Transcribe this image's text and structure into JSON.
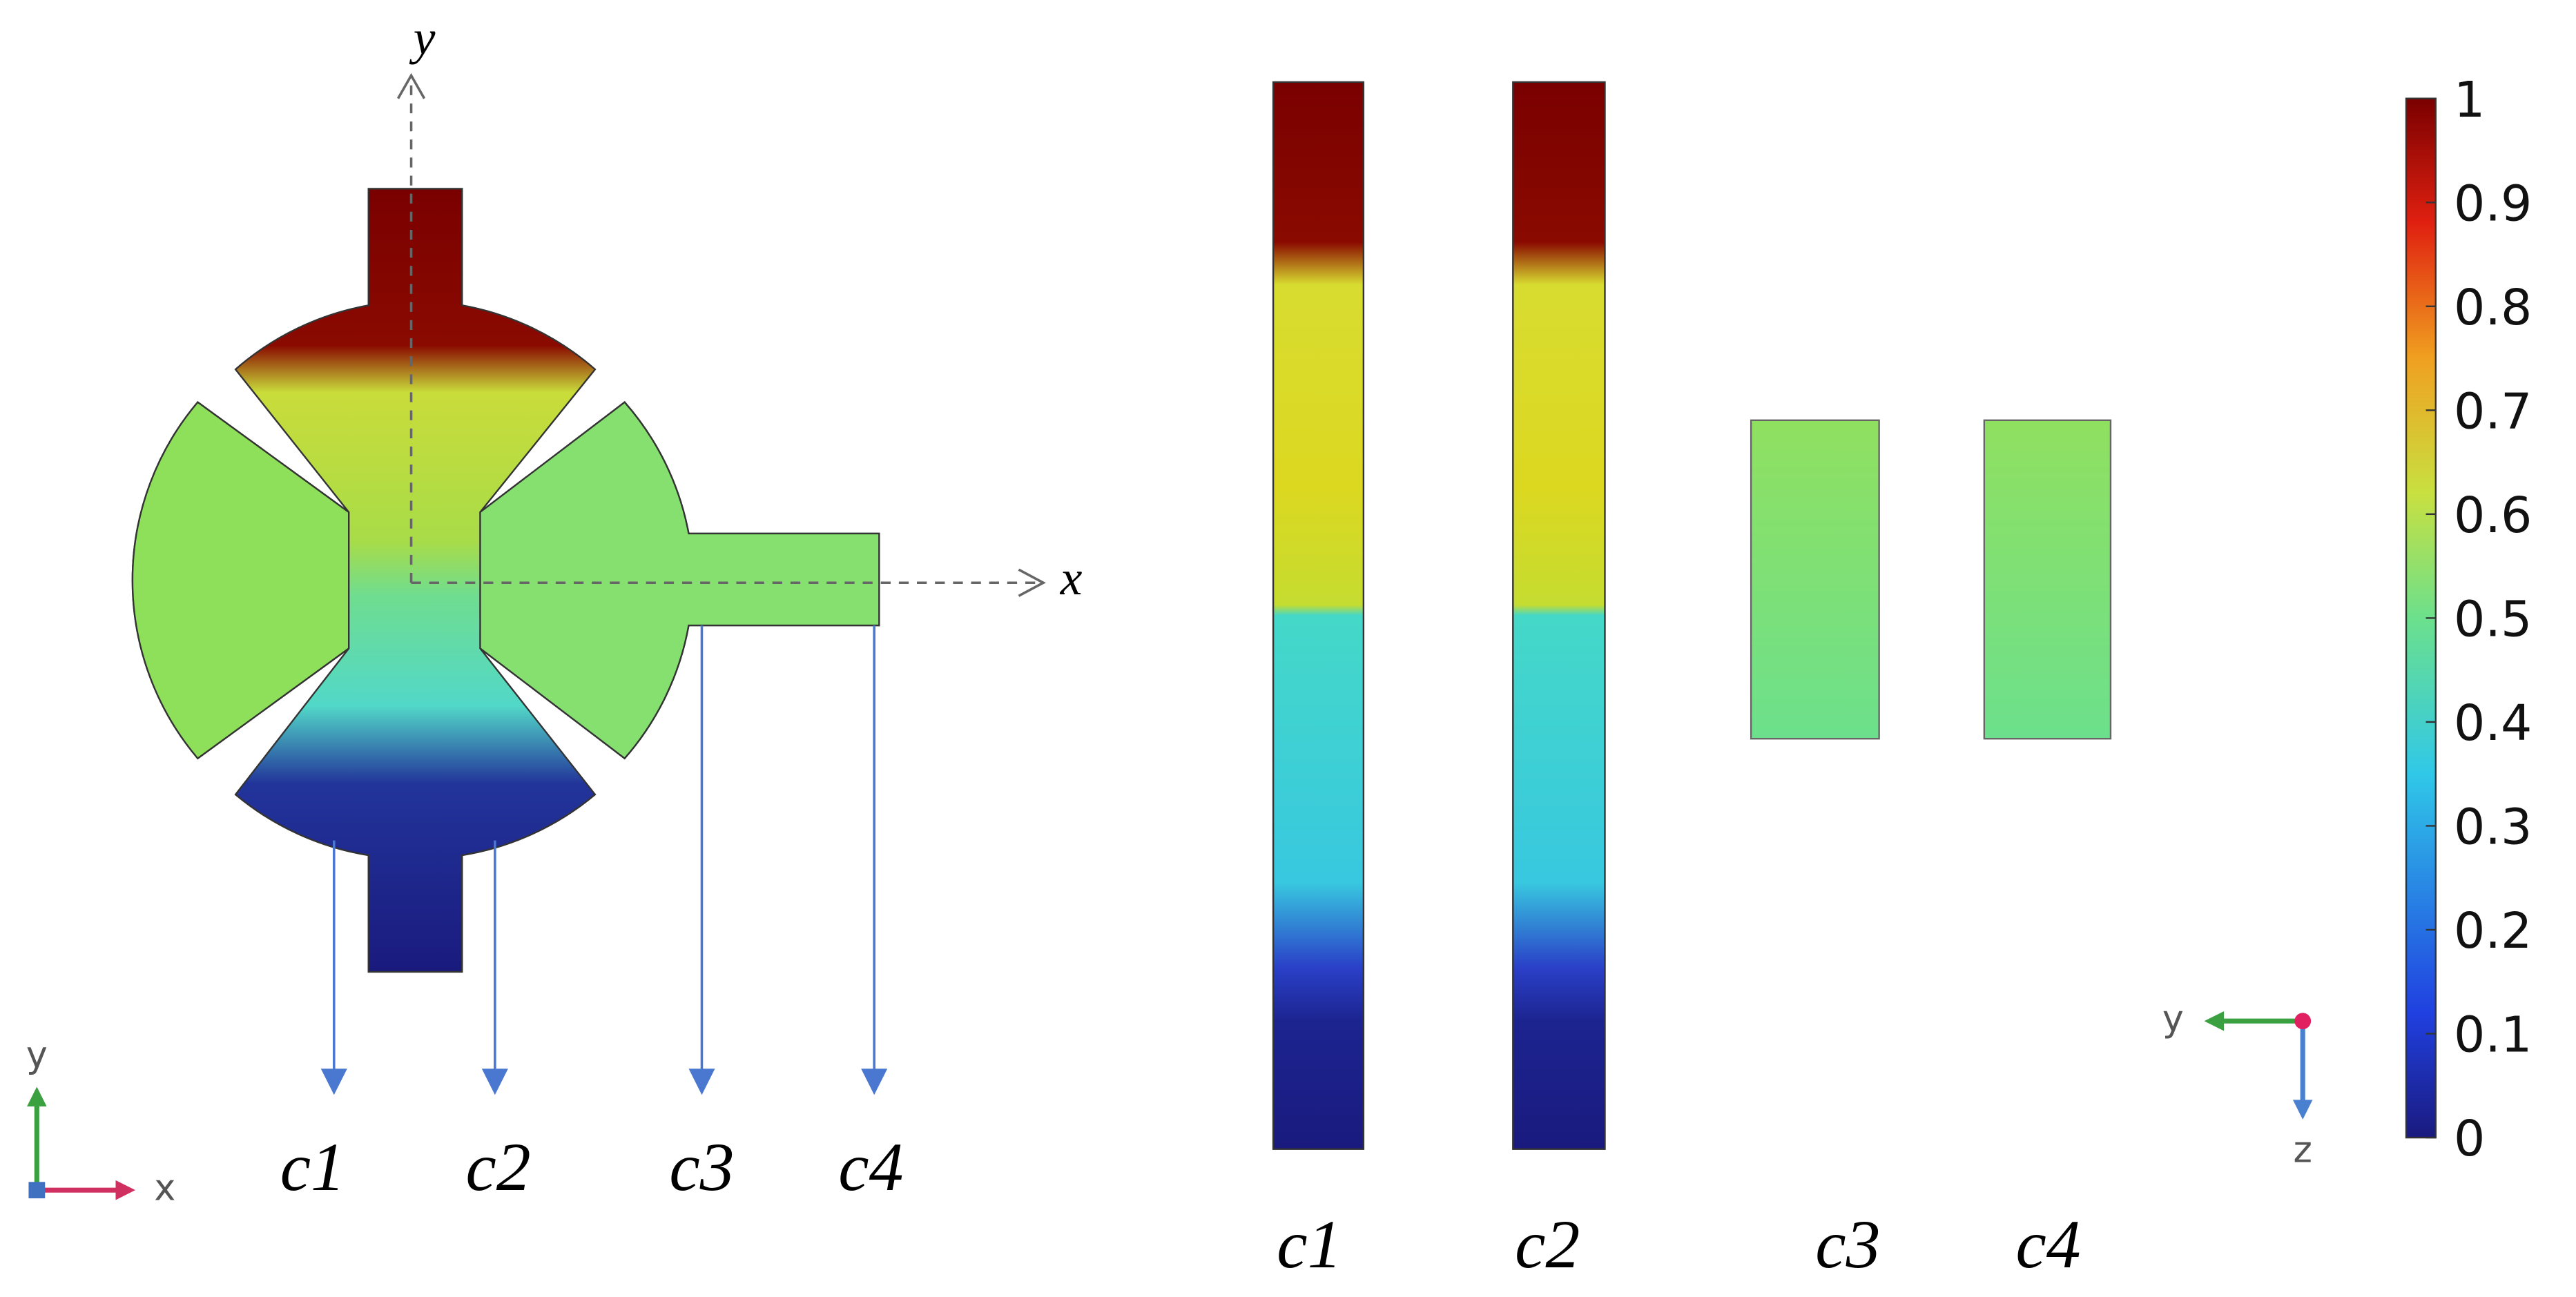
{
  "left_panel": {
    "axis_labels": {
      "x": "x",
      "y": "y"
    },
    "cut_labels": [
      "c1",
      "c2",
      "c3",
      "c4"
    ],
    "triad": {
      "vertical": "y",
      "horizontal": "x"
    }
  },
  "right_panel": {
    "cut_labels": [
      "c1",
      "c2",
      "c3",
      "c4"
    ],
    "triad": {
      "horizontal": "y",
      "vertical": "z"
    }
  },
  "colorbar": {
    "lim": [
      0,
      1
    ],
    "ticks": [
      0,
      0.1,
      0.2,
      0.3,
      0.4,
      0.5,
      0.6,
      0.7,
      0.8,
      0.9,
      1
    ]
  }
}
